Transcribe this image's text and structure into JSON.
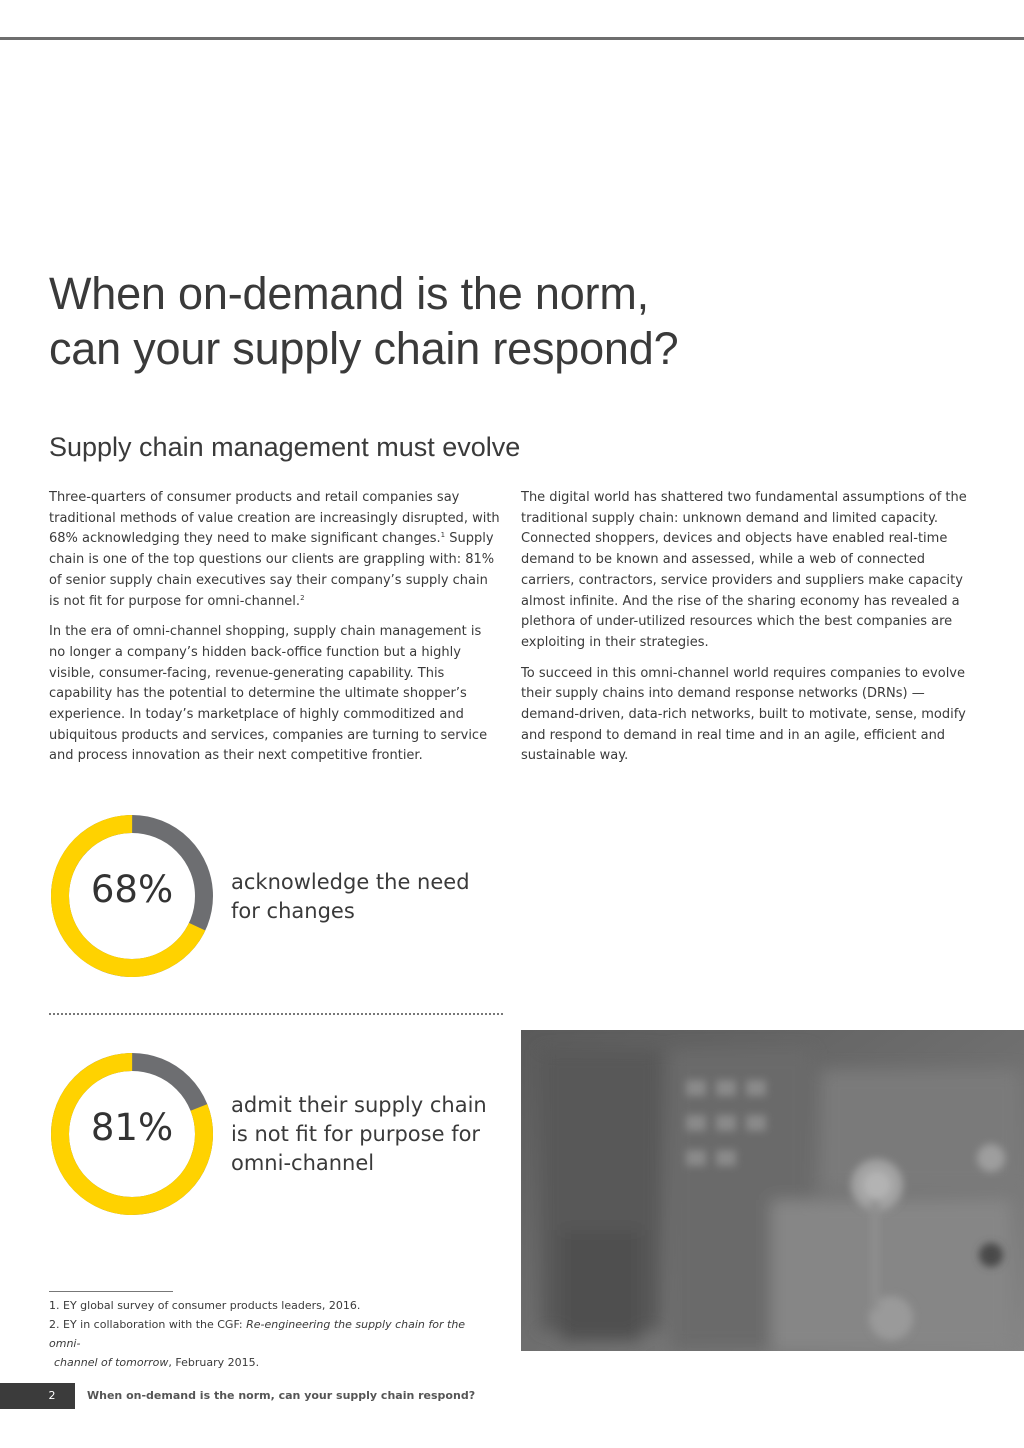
{
  "page": {
    "title_lines": [
      "When on-demand is the norm,",
      "can your supply chain respond?"
    ],
    "subtitle": "Supply chain management must evolve"
  },
  "body": {
    "left": {
      "p1": {
        "a": "Three-quarters of consumer products and retail companies say traditional methods of value creation are increasingly disrupted, with 68% acknowledging they need to make significant changes.",
        "sup1": "1",
        "b": " Supply chain is one of the top questions our clients are grappling with: 81% of senior supply chain executives say their company’s supply chain is not fit for purpose for omni-channel.",
        "sup2": "2"
      },
      "p2": "In the era of omni-channel shopping, supply chain management is no longer a company’s hidden back-office function but a highly visible, consumer-facing, revenue-generating capability. This capability has the potential to determine the ultimate shopper’s experience. In today’s marketplace of highly commoditized and ubiquitous products and services, companies are turning to service and process innovation as their next competitive frontier."
    },
    "right": {
      "p1": "The digital world has shattered two fundamental assumptions of the traditional supply chain: unknown demand and limited capacity. Connected shoppers, devices and objects have enabled real-time demand to be known and assessed, while a web of connected carriers, contractors, service providers and suppliers make capacity almost infinite. And the rise of the sharing economy has revealed a plethora of under-utilized resources which the best companies are exploiting in their strategies.",
      "p2": "To succeed in this omni-channel world requires companies to evolve their supply chains into demand response networks (DRNs) — demand-driven, data-rich networks, built to motivate, sense, modify and respond to demand in real time and in an agile, efficient and sustainable way."
    }
  },
  "stats": [
    {
      "value": 68,
      "label": "68%",
      "desc_lines": [
        "acknowledge the need",
        "for changes"
      ]
    },
    {
      "value": 81,
      "label": "81%",
      "desc_lines": [
        "admit their supply chain",
        "is not fit for purpose for",
        "omni-channel"
      ]
    }
  ],
  "colors": {
    "accent": "#FFD200",
    "remainder": "#6d6e71",
    "text": "#333333"
  },
  "footnotes": {
    "n1": "1. EY global survey of consumer products leaders, 2016.",
    "n2_prefix": "2. EY in collaboration with the CGF: ",
    "n2_italic_a": "Re-engineering the supply chain for the omni-",
    "n2_italic_b": "channel of tomorrow",
    "n2_suffix": ", February 2015."
  },
  "footer": {
    "page_number": "2",
    "title": "When on-demand is the norm, can your supply chain respond?"
  }
}
